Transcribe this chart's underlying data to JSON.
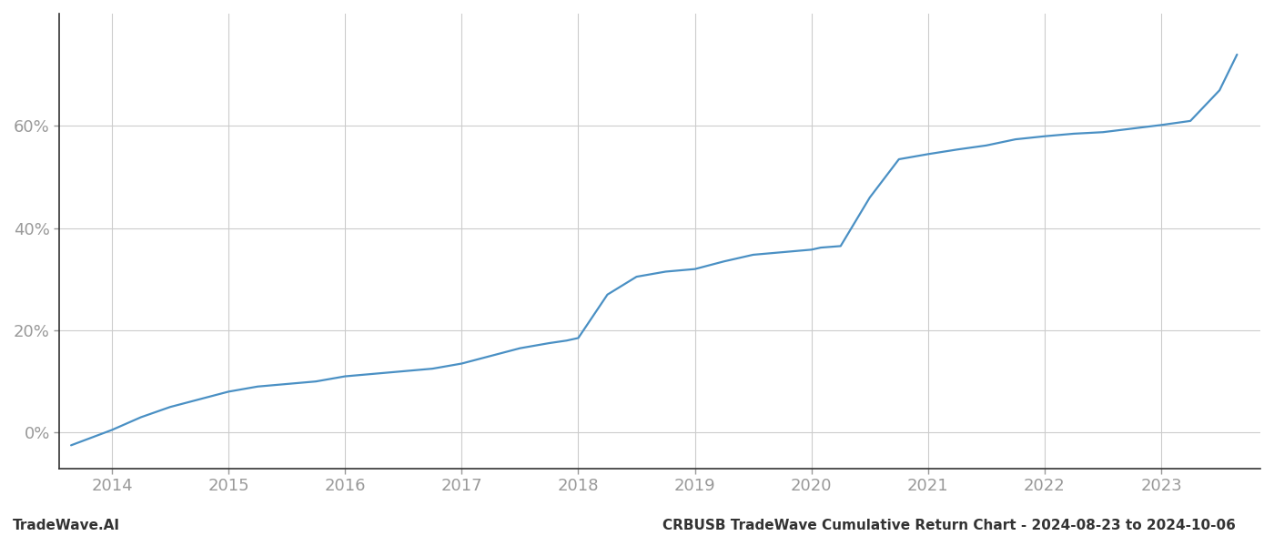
{
  "title": "CRBUSB TradeWave Cumulative Return Chart - 2024-08-23 to 2024-10-06",
  "watermark": "TradeWave.AI",
  "line_color": "#4a90c4",
  "background_color": "#ffffff",
  "grid_color": "#cccccc",
  "x_years": [
    2014,
    2015,
    2016,
    2017,
    2018,
    2019,
    2020,
    2021,
    2022,
    2023
  ],
  "x_data": [
    2013.65,
    2014.0,
    2014.25,
    2014.5,
    2014.75,
    2015.0,
    2015.25,
    2015.5,
    2015.75,
    2016.0,
    2016.25,
    2016.5,
    2016.75,
    2017.0,
    2017.25,
    2017.5,
    2017.75,
    2017.9,
    2018.0,
    2018.25,
    2018.5,
    2018.75,
    2019.0,
    2019.25,
    2019.5,
    2019.75,
    2020.0,
    2020.08,
    2020.25,
    2020.5,
    2020.75,
    2021.0,
    2021.25,
    2021.5,
    2021.75,
    2022.0,
    2022.25,
    2022.5,
    2022.75,
    2023.0,
    2023.25,
    2023.5,
    2023.65
  ],
  "y_data": [
    -0.025,
    0.005,
    0.03,
    0.05,
    0.065,
    0.08,
    0.09,
    0.095,
    0.1,
    0.11,
    0.115,
    0.12,
    0.125,
    0.135,
    0.15,
    0.165,
    0.175,
    0.18,
    0.185,
    0.27,
    0.305,
    0.315,
    0.32,
    0.335,
    0.348,
    0.353,
    0.358,
    0.362,
    0.365,
    0.46,
    0.535,
    0.545,
    0.554,
    0.562,
    0.574,
    0.58,
    0.585,
    0.588,
    0.595,
    0.602,
    0.61,
    0.67,
    0.74
  ],
  "ytick_values": [
    0.0,
    0.2,
    0.4,
    0.6
  ],
  "ytick_labels": [
    "0%",
    "20%",
    "40%",
    "60%"
  ],
  "ylim": [
    -0.07,
    0.82
  ],
  "xlim": [
    2013.55,
    2023.85
  ],
  "title_fontsize": 11,
  "watermark_fontsize": 11,
  "tick_fontsize": 13,
  "tick_color": "#999999",
  "spine_color": "#333333",
  "line_width": 1.6
}
